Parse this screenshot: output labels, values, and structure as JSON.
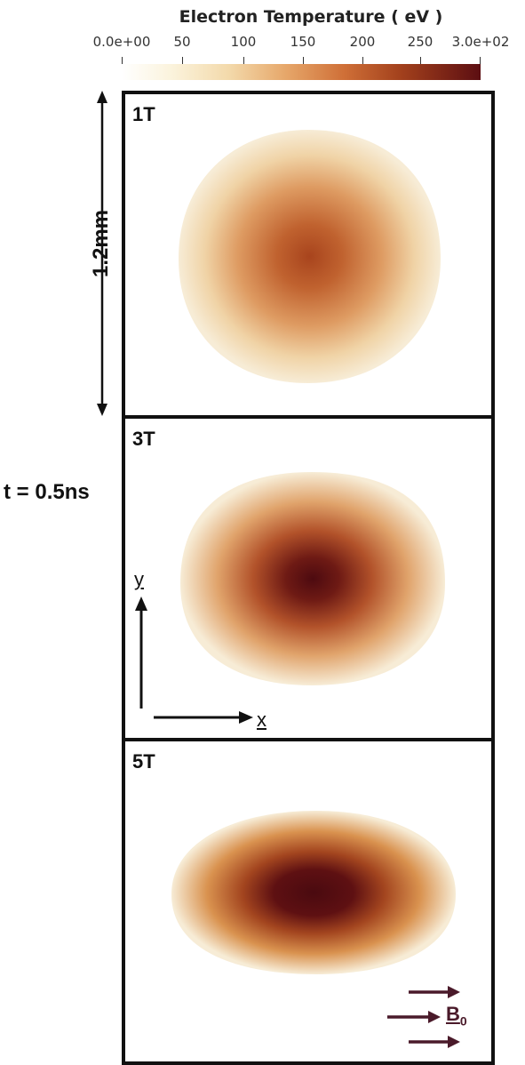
{
  "colorbar": {
    "title": "Electron Temperature ( eV )",
    "ticks": [
      "0.0e+00",
      "50",
      "100",
      "150",
      "200",
      "250",
      "3.0e+02"
    ],
    "colors": [
      "#ffffff",
      "#f3d9aa",
      "#cf6f37",
      "#5c0e12"
    ]
  },
  "scale_label": "1.2mm",
  "time_label": "t = 0.5ns",
  "panels": [
    {
      "label": "1T",
      "peak_temperature": 220
    },
    {
      "label": "3T",
      "peak_temperature": 300
    },
    {
      "label": "5T",
      "peak_temperature": 300
    }
  ],
  "axes": {
    "y_label": "y",
    "x_label": "x"
  },
  "field": {
    "label": "B",
    "subscript": "0",
    "color": "#4a1a2a"
  }
}
